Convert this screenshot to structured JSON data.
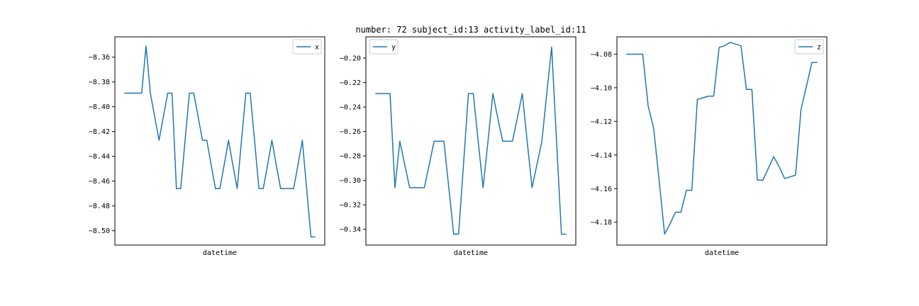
{
  "figure": {
    "title": "number: 72 subject_id:13 activity_label_id:11"
  },
  "chart_data": [
    {
      "type": "line",
      "xlabel": "datetime",
      "ylabel": "",
      "legend_placement": "upper right",
      "yticks": [
        -8.5,
        -8.48,
        -8.46,
        -8.44,
        -8.42,
        -8.4,
        -8.38,
        -8.36
      ],
      "ytick_labels": [
        "−8.50",
        "−8.48",
        "−8.46",
        "−8.44",
        "−8.42",
        "−8.40",
        "−8.38",
        "−8.36"
      ],
      "ylim": [
        -8.5116,
        -8.3436
      ],
      "series": [
        {
          "name": "x",
          "color": "#1f77b4",
          "values": [
            -8.389,
            -8.389,
            -8.389,
            -8.389,
            -8.389,
            -8.351,
            -8.389,
            -8.408,
            -8.427,
            -8.408,
            -8.389,
            -8.389,
            -8.466,
            -8.466,
            -8.427,
            -8.389,
            -8.389,
            -8.408,
            -8.427,
            -8.427,
            -8.447,
            -8.466,
            -8.466,
            -8.447,
            -8.427,
            -8.447,
            -8.466,
            -8.427,
            -8.389,
            -8.389,
            -8.427,
            -8.466,
            -8.466,
            -8.447,
            -8.427,
            -8.447,
            -8.466,
            -8.466,
            -8.466,
            -8.466,
            -8.447,
            -8.427,
            -8.466,
            -8.505,
            -8.505
          ]
        }
      ]
    },
    {
      "type": "line",
      "xlabel": "datetime",
      "ylabel": "",
      "legend_placement": "upper left",
      "yticks": [
        -0.34,
        -0.32,
        -0.3,
        -0.28,
        -0.26,
        -0.24,
        -0.22,
        -0.2
      ],
      "ytick_labels": [
        "−0.34",
        "−0.32",
        "−0.30",
        "−0.28",
        "−0.26",
        "−0.24",
        "−0.22",
        "−0.20"
      ],
      "ylim": [
        -0.3529,
        -0.1826
      ],
      "series": [
        {
          "name": "y",
          "color": "#1f77b4",
          "values": [
            -0.229,
            -0.229,
            -0.229,
            -0.229,
            -0.306,
            -0.268,
            -0.287,
            -0.306,
            -0.306,
            -0.306,
            -0.306,
            -0.287,
            -0.268,
            -0.268,
            -0.268,
            -0.306,
            -0.344,
            -0.344,
            -0.287,
            -0.229,
            -0.229,
            -0.268,
            -0.306,
            -0.268,
            -0.229,
            -0.249,
            -0.268,
            -0.268,
            -0.268,
            -0.249,
            -0.229,
            -0.268,
            -0.306,
            -0.287,
            -0.268,
            -0.229,
            -0.191,
            -0.268,
            -0.344,
            -0.344
          ]
        }
      ]
    },
    {
      "type": "line",
      "xlabel": "datetime",
      "ylabel": "",
      "legend_placement": "upper right",
      "yticks": [
        -4.18,
        -4.16,
        -4.14,
        -4.12,
        -4.1,
        -4.08
      ],
      "ytick_labels": [
        "−4.18",
        "−4.16",
        "−4.14",
        "−4.12",
        "−4.10",
        "−4.08"
      ],
      "ylim": [
        -4.1936,
        -4.0697
      ],
      "series": [
        {
          "name": "z",
          "color": "#1f77b4",
          "values": [
            -4.08,
            -4.08,
            -4.08,
            -4.08,
            -4.111,
            -4.124,
            -4.155,
            -4.187,
            -4.181,
            -4.174,
            -4.174,
            -4.161,
            -4.161,
            -4.107,
            -4.106,
            -4.105,
            -4.105,
            -4.076,
            -4.075,
            -4.073,
            -4.074,
            -4.075,
            -4.101,
            -4.101,
            -4.155,
            -4.155,
            -4.148,
            -4.141,
            -4.147,
            -4.154,
            -4.153,
            -4.152,
            -4.113,
            -4.099,
            -4.085,
            -4.085
          ]
        }
      ]
    }
  ]
}
